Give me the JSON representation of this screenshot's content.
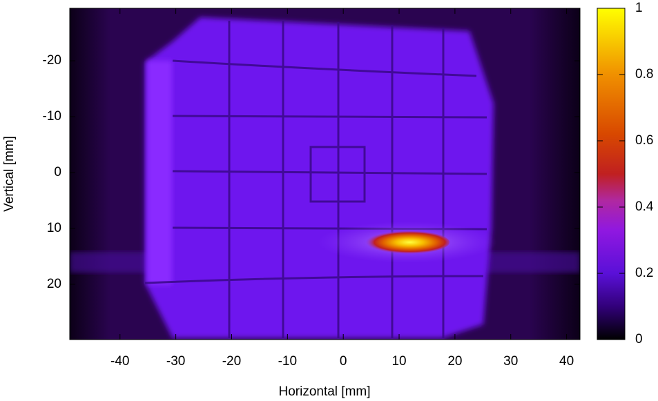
{
  "chart_data": {
    "type": "heatmap",
    "xlabel": "Horizontal [mm]",
    "ylabel": "Vertical [mm]",
    "xlim": [
      -49,
      42.4
    ],
    "xticks": [
      -40,
      -30,
      -20,
      -10,
      0,
      10,
      20,
      30,
      40
    ],
    "ylim": [
      29.9,
      -29.4
    ],
    "yticks": [
      -20,
      -10,
      0,
      10,
      20
    ],
    "colorbar": {
      "lim": [
        0,
        1
      ],
      "ticks": [
        0,
        0.2,
        0.4,
        0.6,
        0.8,
        1
      ]
    }
  }
}
